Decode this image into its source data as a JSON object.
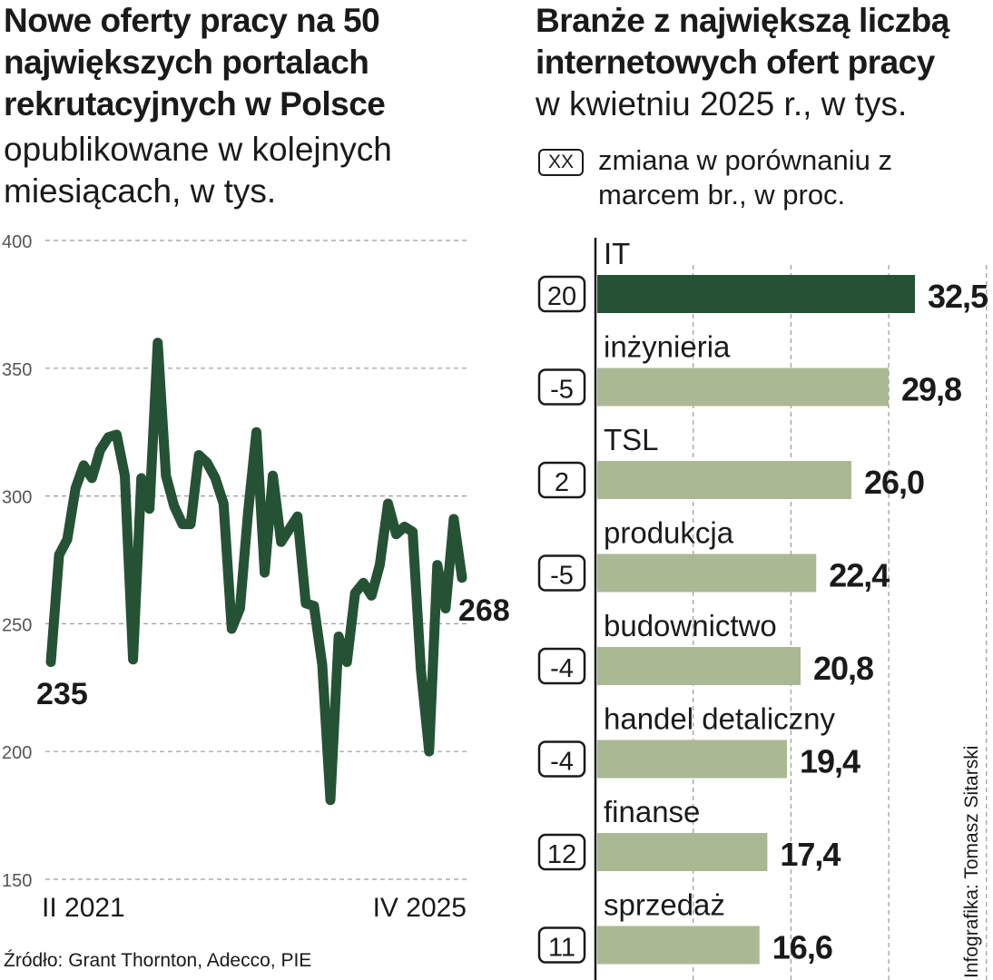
{
  "left": {
    "title": "Nowe oferty pracy na 50 największych portalach rekrutacyjnych w Polsce",
    "subtitle": "opublikowane w kolejnych miesiącach, w tys."
  },
  "right": {
    "title": "Branże z największą liczbą internetowych ofert pracy",
    "subtitle": "w kwietniu 2025 r., w tys.",
    "legend_box": "XX",
    "legend_text": "zmiana w porównaniu z marcem br., w proc."
  },
  "source": "Źródło: Grant Thornton, Adecco, PIE",
  "credit": "Infografika: Tomasz Sitarski",
  "colors": {
    "line": "#255235",
    "bar_highlight": "#255235",
    "bar": "#aab894",
    "grid": "#9a9a9a",
    "text": "#1a1a1a"
  },
  "chart_data": [
    {
      "type": "line",
      "title": "Nowe oferty pracy na 50 największych portalach rekrutacyjnych w Polsce",
      "ylabel": "w tys.",
      "ylim": [
        150,
        400
      ],
      "yticks": [
        400,
        350,
        300,
        250,
        200,
        150
      ],
      "ytick_labels": [
        "400",
        "350",
        "300",
        "250",
        "200",
        "150"
      ],
      "x_start_label": "II 2021",
      "x_end_label": "IV 2025",
      "start_label": "235",
      "end_label": "268",
      "values": [
        235,
        277,
        283,
        303,
        312,
        307,
        318,
        323,
        324,
        308,
        236,
        307,
        295,
        360,
        308,
        296,
        289,
        289,
        316,
        313,
        307,
        297,
        248,
        256,
        294,
        325,
        270,
        308,
        282,
        287,
        292,
        258,
        257,
        234,
        181,
        245,
        235,
        262,
        266,
        261,
        273,
        297,
        285,
        288,
        286,
        232,
        200,
        273,
        256,
        291,
        268
      ]
    },
    {
      "type": "bar",
      "orientation": "horizontal",
      "title": "Branże z największą liczbą internetowych ofert pracy",
      "categories": [
        "IT",
        "inżynieria",
        "TSL",
        "produkcja",
        "budownictwo",
        "handel detaliczny",
        "finanse",
        "sprzedaż"
      ],
      "values": [
        32.5,
        29.8,
        26.0,
        22.4,
        20.8,
        19.4,
        17.4,
        16.6
      ],
      "value_labels": [
        "32,5",
        "29,8",
        "26,0",
        "22,4",
        "20,8",
        "19,4",
        "17,4",
        "16,6"
      ],
      "changes": [
        "20",
        "-5",
        "2",
        "-5",
        "-4",
        "-4",
        "12",
        "11"
      ],
      "highlight_index": 0,
      "xlim": [
        0,
        40
      ],
      "xticks": [
        10,
        20,
        30,
        40
      ]
    }
  ]
}
